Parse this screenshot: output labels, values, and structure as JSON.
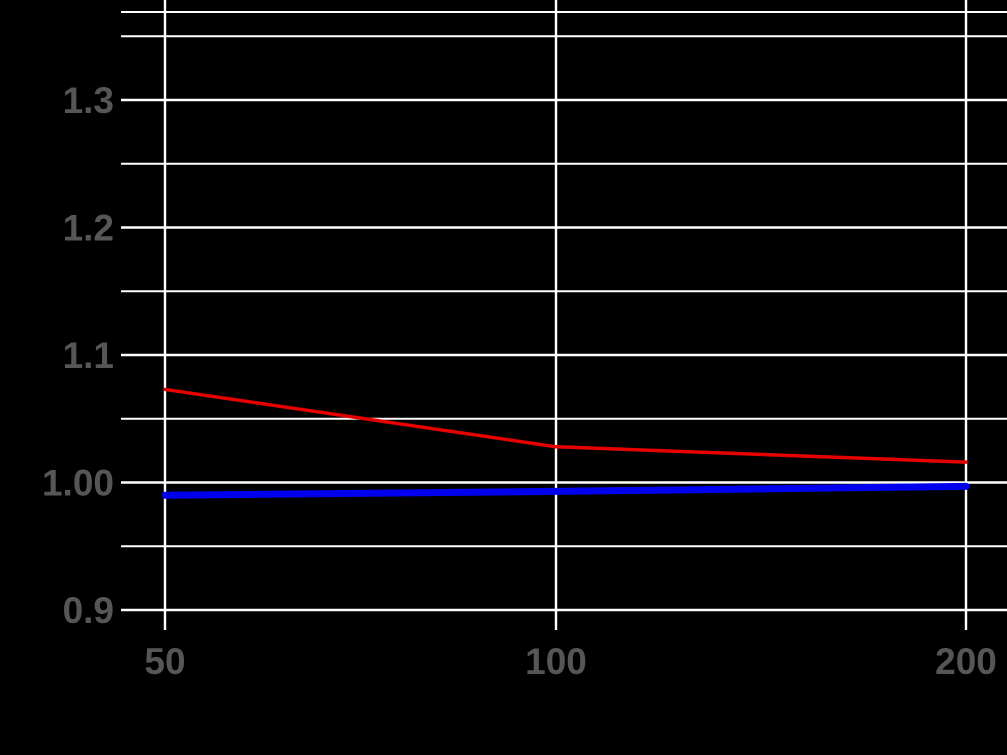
{
  "chart_data": {
    "type": "line",
    "title": "",
    "xlabel": "",
    "ylabel": "",
    "x_scale": "log2",
    "x_ticks": [
      50,
      100,
      200
    ],
    "x_tick_labels": [
      "50",
      "100",
      "200"
    ],
    "y_ticks_major": [
      0.9,
      1.0,
      1.1,
      1.2,
      1.3
    ],
    "y_tick_labels": [
      "0.9",
      "1.00",
      "1.1",
      "1.2",
      "1.3"
    ],
    "y_ticks_minor": [
      0.95,
      1.05,
      1.15,
      1.25,
      1.35
    ],
    "xlim": [
      44,
      212
    ],
    "ylim": [
      0.885,
      1.369
    ],
    "grid": {
      "color": "#ffffff",
      "major_width": 2.4,
      "minor_width": 2.0
    },
    "background": "#000000",
    "tick_label_color": "#565656",
    "legend": "none",
    "series": [
      {
        "name": "red-series",
        "color": "#e60000",
        "stroke_width": 3.5,
        "x": [
          50,
          100,
          200
        ],
        "y": [
          1.073,
          1.028,
          1.016
        ]
      },
      {
        "name": "blue-series",
        "color": "#0000ee",
        "stroke_width": 7,
        "x": [
          50,
          100,
          200
        ],
        "y": [
          0.99,
          0.993,
          0.997
        ]
      }
    ]
  }
}
